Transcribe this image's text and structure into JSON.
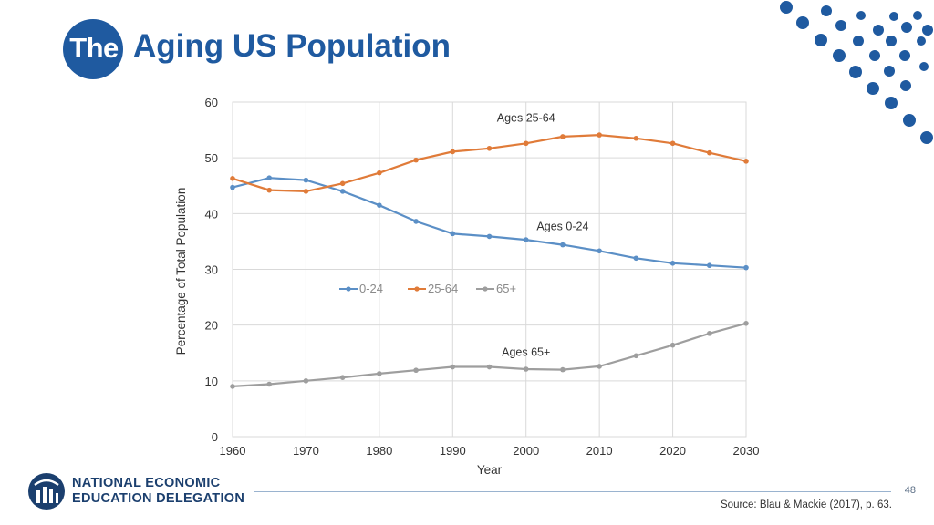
{
  "slide": {
    "title_highlight": "The",
    "title_rest": "Aging US Population",
    "page_number": "48",
    "source": "Source: Blau & Mackie (2017), p. 63.",
    "org_name_line1": "NATIONAL ECONOMIC",
    "org_name_line2": "EDUCATION DELEGATION",
    "brand_color": "#1f5aa0"
  },
  "chart_data": {
    "type": "line",
    "title": "",
    "xlabel": "Year",
    "ylabel": "Percentage of Total Population",
    "xlim": [
      1960,
      2030
    ],
    "ylim": [
      0,
      60
    ],
    "x_ticks": [
      1960,
      1970,
      1980,
      1990,
      2000,
      2010,
      2020,
      2030
    ],
    "y_ticks": [
      0,
      10,
      20,
      30,
      40,
      50,
      60
    ],
    "x": [
      1960,
      1965,
      1970,
      1975,
      1980,
      1985,
      1990,
      1995,
      2000,
      2005,
      2010,
      2015,
      2020,
      2025,
      2030
    ],
    "grid": true,
    "legend": "center",
    "series": [
      {
        "name": "0-24",
        "color": "#5b8fc6",
        "values": [
          44.7,
          46.4,
          46.0,
          44.0,
          41.5,
          38.6,
          36.4,
          35.9,
          35.3,
          34.4,
          33.3,
          32.0,
          31.1,
          30.7,
          30.3
        ]
      },
      {
        "name": "25-64",
        "color": "#e07b39",
        "values": [
          46.3,
          44.2,
          44.0,
          45.4,
          47.3,
          49.6,
          51.1,
          51.7,
          52.6,
          53.8,
          54.1,
          53.5,
          52.6,
          50.9,
          49.4
        ]
      },
      {
        "name": "65+",
        "color": "#9e9e9e",
        "values": [
          9.0,
          9.4,
          10.0,
          10.6,
          11.3,
          11.9,
          12.5,
          12.5,
          12.1,
          12.0,
          12.6,
          14.5,
          16.4,
          18.5,
          20.3
        ]
      }
    ],
    "annotations": [
      {
        "text": "Ages 25-64",
        "x": 2000,
        "y": 56.5
      },
      {
        "text": "Ages 0-24",
        "x": 2005,
        "y": 37.0
      },
      {
        "text": "Ages 65+",
        "x": 2000,
        "y": 14.5
      }
    ]
  }
}
